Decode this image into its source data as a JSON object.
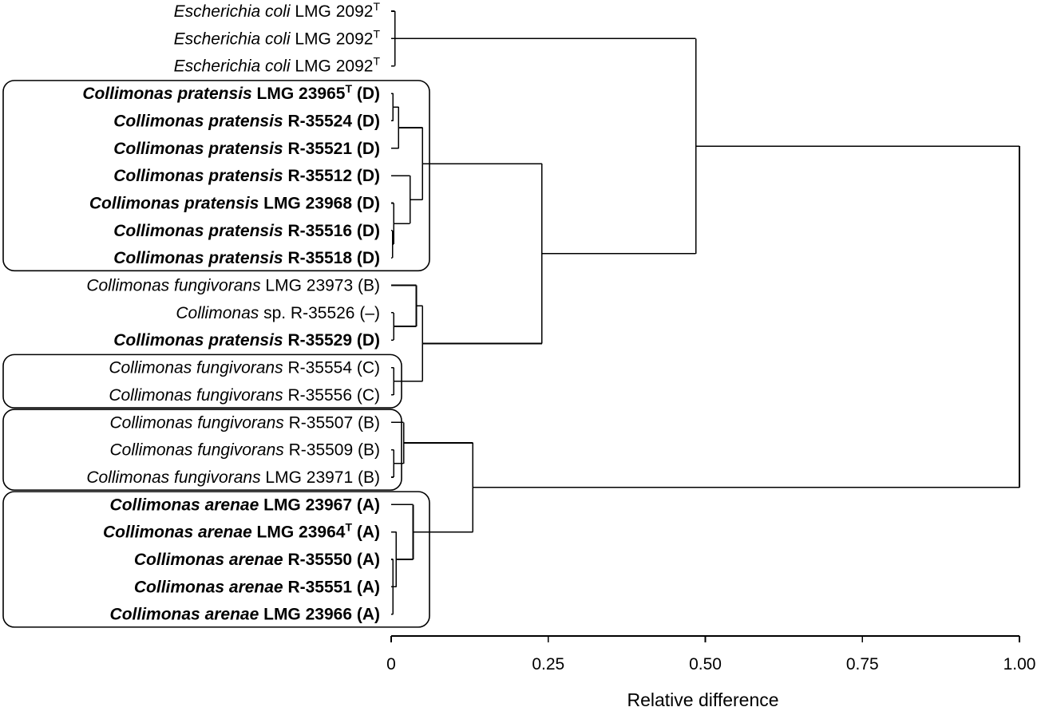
{
  "chart_data": {
    "type": "dendrogram",
    "xlabel": "Relative difference",
    "xlim": [
      0,
      1
    ],
    "ticks": [
      {
        "value": 0,
        "label": "0"
      },
      {
        "value": 0.25,
        "label": "0.25"
      },
      {
        "value": 0.5,
        "label": "0.50"
      },
      {
        "value": 0.75,
        "label": "0.75"
      },
      {
        "value": 1,
        "label": "1.00"
      }
    ],
    "leaves": [
      {
        "parts": [
          {
            "text": "Escherichia coli",
            "i": true
          },
          {
            "text": " LMG 2092"
          },
          {
            "text": "T",
            "sup": true
          }
        ],
        "bold": false
      },
      {
        "parts": [
          {
            "text": "Escherichia coli",
            "i": true
          },
          {
            "text": " LMG 2092"
          },
          {
            "text": "T",
            "sup": true
          }
        ],
        "bold": false
      },
      {
        "parts": [
          {
            "text": "Escherichia coli",
            "i": true
          },
          {
            "text": " LMG 2092"
          },
          {
            "text": "T",
            "sup": true
          }
        ],
        "bold": false
      },
      {
        "parts": [
          {
            "text": "Collimonas pratensis",
            "i": true
          },
          {
            "text": " LMG 23965"
          },
          {
            "text": "T",
            "sup": true
          },
          {
            "text": " (D)"
          }
        ],
        "bold": true
      },
      {
        "parts": [
          {
            "text": "Collimonas pratensis",
            "i": true
          },
          {
            "text": " R-35524 (D)"
          }
        ],
        "bold": true
      },
      {
        "parts": [
          {
            "text": "Collimonas pratensis",
            "i": true
          },
          {
            "text": " R-35521 (D)"
          }
        ],
        "bold": true
      },
      {
        "parts": [
          {
            "text": "Collimonas pratensis",
            "i": true
          },
          {
            "text": " R-35512 (D)"
          }
        ],
        "bold": true
      },
      {
        "parts": [
          {
            "text": "Collimonas pratensis",
            "i": true
          },
          {
            "text": " LMG 23968 (D)"
          }
        ],
        "bold": true
      },
      {
        "parts": [
          {
            "text": "Collimonas pratensis",
            "i": true
          },
          {
            "text": " R-35516 (D)"
          }
        ],
        "bold": true
      },
      {
        "parts": [
          {
            "text": "Collimonas pratensis",
            "i": true
          },
          {
            "text": " R-35518 (D)"
          }
        ],
        "bold": true
      },
      {
        "parts": [
          {
            "text": "Collimonas fungivorans",
            "i": true
          },
          {
            "text": " LMG 23973 (B)"
          }
        ],
        "bold": false
      },
      {
        "parts": [
          {
            "text": "Collimonas",
            "i": true
          },
          {
            "text": " sp. R-35526 (–)"
          }
        ],
        "bold": false
      },
      {
        "parts": [
          {
            "text": "Collimonas pratensis",
            "i": true
          },
          {
            "text": " R-35529 (D)"
          }
        ],
        "bold": true
      },
      {
        "parts": [
          {
            "text": "Collimonas fungivorans",
            "i": true
          },
          {
            "text": " R-35554 (C)"
          }
        ],
        "bold": false
      },
      {
        "parts": [
          {
            "text": "Collimonas fungivorans",
            "i": true
          },
          {
            "text": " R-35556 (C)"
          }
        ],
        "bold": false
      },
      {
        "parts": [
          {
            "text": "Collimonas fungivorans",
            "i": true
          },
          {
            "text": " R-35507 (B)"
          }
        ],
        "bold": false
      },
      {
        "parts": [
          {
            "text": "Collimonas fungivorans",
            "i": true
          },
          {
            "text": " R-35509 (B)"
          }
        ],
        "bold": false
      },
      {
        "parts": [
          {
            "text": "Collimonas fungivorans",
            "i": true
          },
          {
            "text": " LMG 23971 (B)"
          }
        ],
        "bold": false
      },
      {
        "parts": [
          {
            "text": "Collimonas arenae",
            "i": true
          },
          {
            "text": " LMG 23967 (A)"
          }
        ],
        "bold": true
      },
      {
        "parts": [
          {
            "text": "Collimonas arenae",
            "i": true
          },
          {
            "text": " LMG 23964"
          },
          {
            "text": "T",
            "sup": true
          },
          {
            "text": " (A)"
          }
        ],
        "bold": true
      },
      {
        "parts": [
          {
            "text": "Collimonas arenae",
            "i": true
          },
          {
            "text": " R-35550 (A)"
          }
        ],
        "bold": true
      },
      {
        "parts": [
          {
            "text": "Collimonas arenae",
            "i": true
          },
          {
            "text": " R-35551 (A)"
          }
        ],
        "bold": true
      },
      {
        "parts": [
          {
            "text": "Collimonas arenae",
            "i": true
          },
          {
            "text": " LMG 23966 (A)"
          }
        ],
        "bold": true
      }
    ],
    "merges": [
      {
        "children": [
          "L0",
          "L1",
          "L2"
        ],
        "height": 0.006
      },
      {
        "children": [
          "L3",
          "L4"
        ],
        "height": 0.003
      },
      {
        "children": [
          "M1",
          "L5"
        ],
        "height": 0.012
      },
      {
        "children": [
          "L8",
          "L9"
        ],
        "height": 0.002
      },
      {
        "children": [
          "L7",
          "M3"
        ],
        "height": 0.004
      },
      {
        "children": [
          "L6",
          "M4"
        ],
        "height": 0.03
      },
      {
        "children": [
          "M2",
          "M5"
        ],
        "height": 0.05
      },
      {
        "children": [
          "L11",
          "L12"
        ],
        "height": 0.004
      },
      {
        "children": [
          "L10",
          "M7"
        ],
        "height": 0.04
      },
      {
        "children": [
          "L13",
          "L14"
        ],
        "height": 0.004
      },
      {
        "children": [
          "M8",
          "M9"
        ],
        "height": 0.05
      },
      {
        "children": [
          "M6",
          "M10"
        ],
        "height": 0.24
      },
      {
        "children": [
          "M0",
          "M11"
        ],
        "height": 0.485
      },
      {
        "children": [
          "L16",
          "L17"
        ],
        "height": 0.004
      },
      {
        "children": [
          "L15",
          "M13"
        ],
        "height": 0.02
      },
      {
        "children": [
          "L20",
          "L21",
          "L22"
        ],
        "height": 0.003
      },
      {
        "children": [
          "L19",
          "M15"
        ],
        "height": 0.008
      },
      {
        "children": [
          "L18",
          "M16"
        ],
        "height": 0.035
      },
      {
        "children": [
          "M14",
          "M17"
        ],
        "height": 0.13
      },
      {
        "children": [
          "M12",
          "M18"
        ],
        "height": 1.0
      }
    ],
    "groups": [
      {
        "from": 3,
        "to": 9
      },
      {
        "from": 13,
        "to": 14
      },
      {
        "from": 15,
        "to": 17
      },
      {
        "from": 18,
        "to": 22
      }
    ]
  }
}
